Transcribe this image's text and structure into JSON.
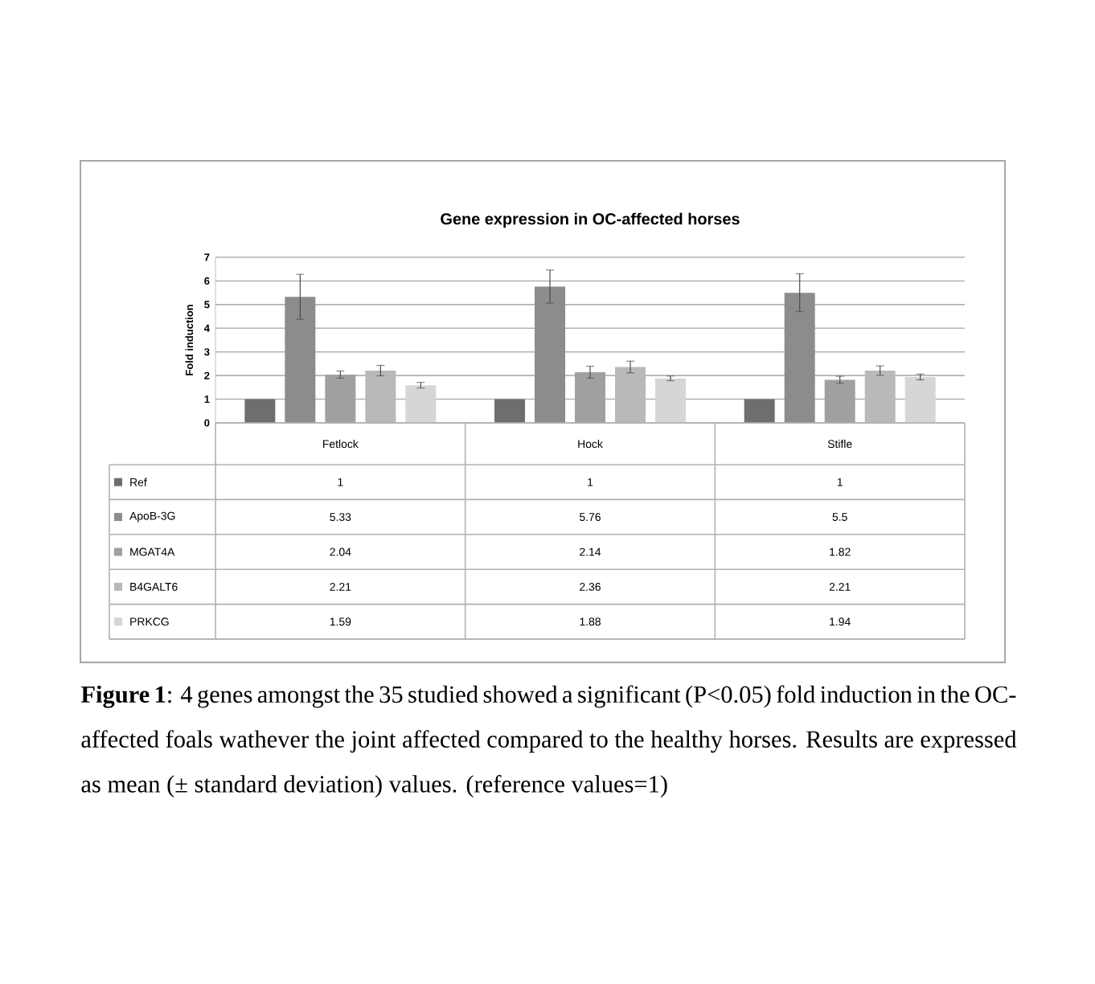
{
  "chart_data": {
    "type": "bar",
    "title": "Gene expression in OC-affected horses",
    "ylabel": "Fold induction",
    "categories": [
      "Fetlock",
      "Hock",
      "Stifle"
    ],
    "series": [
      {
        "name": "Ref",
        "color": "#6e6e6e",
        "values": [
          1,
          1,
          1
        ]
      },
      {
        "name": "ApoB-3G",
        "color": "#8c8c8c",
        "values": [
          5.33,
          5.76,
          5.5
        ],
        "errors": [
          0.95,
          0.7,
          0.8
        ]
      },
      {
        "name": "MGAT4A",
        "color": "#a0a0a0",
        "values": [
          2.04,
          2.14,
          1.82
        ],
        "errors": [
          0.15,
          0.25,
          0.15
        ]
      },
      {
        "name": "B4GALT6",
        "color": "#b9b9b9",
        "values": [
          2.21,
          2.36,
          2.21
        ],
        "errors": [
          0.22,
          0.25,
          0.2
        ]
      },
      {
        "name": "PRKCG",
        "color": "#d6d6d6",
        "values": [
          1.59,
          1.88,
          1.94
        ],
        "errors": [
          0.12,
          0.1,
          0.12
        ]
      }
    ],
    "ylim": [
      0,
      7
    ],
    "yticks": [
      0,
      1,
      2,
      3,
      4,
      5,
      6,
      7
    ],
    "grid": "y",
    "legend": "bottom",
    "data_labels": true,
    "annotations": [
      "**Figure 1**: 4 genes amongst the 35 studied showed a significant (P<0.05) fold induction in the OC-affected foals wathever the joint affected compared to the healthy horses. Results are expressed as mean (± standard deviation) values. (reference values=1)"
    ]
  }
}
